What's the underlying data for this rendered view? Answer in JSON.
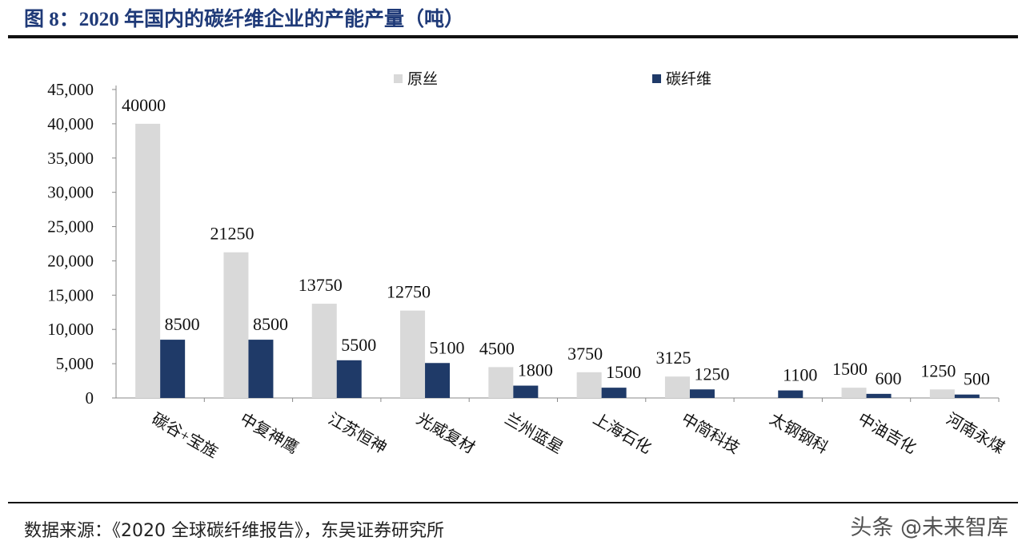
{
  "title": "图 8：2020 年国内的碳纤维企业的产能产量（吨）",
  "source": "数据来源：《2020 全球碳纤维报告》，东吴证券研究所",
  "watermark": "头条 @未来智库",
  "chart_data": {
    "type": "bar",
    "title": "",
    "xlabel": "",
    "ylabel": "",
    "ylim": [
      0,
      45000
    ],
    "yticks": [
      "0",
      "5,000",
      "10,000",
      "15,000",
      "20,000",
      "25,000",
      "30,000",
      "35,000",
      "40,000",
      "45,000"
    ],
    "grid": false,
    "legend_position": "top",
    "categories": [
      "碳谷+宝旌",
      "中复神鹰",
      "江苏恒神",
      "光威复材",
      "兰州蓝星",
      "上海石化",
      "中简科技",
      "太钢钢科",
      "中油吉化",
      "河南永煤"
    ],
    "series": [
      {
        "name": "原丝",
        "color": "#d9d9d9",
        "values": [
          40000,
          21250,
          13750,
          12750,
          4500,
          3750,
          3125,
          null,
          1500,
          1250
        ]
      },
      {
        "name": "碳纤维",
        "color": "#1f3a68",
        "values": [
          8500,
          8500,
          5500,
          5100,
          1800,
          1500,
          1250,
          1100,
          600,
          500
        ]
      }
    ]
  }
}
